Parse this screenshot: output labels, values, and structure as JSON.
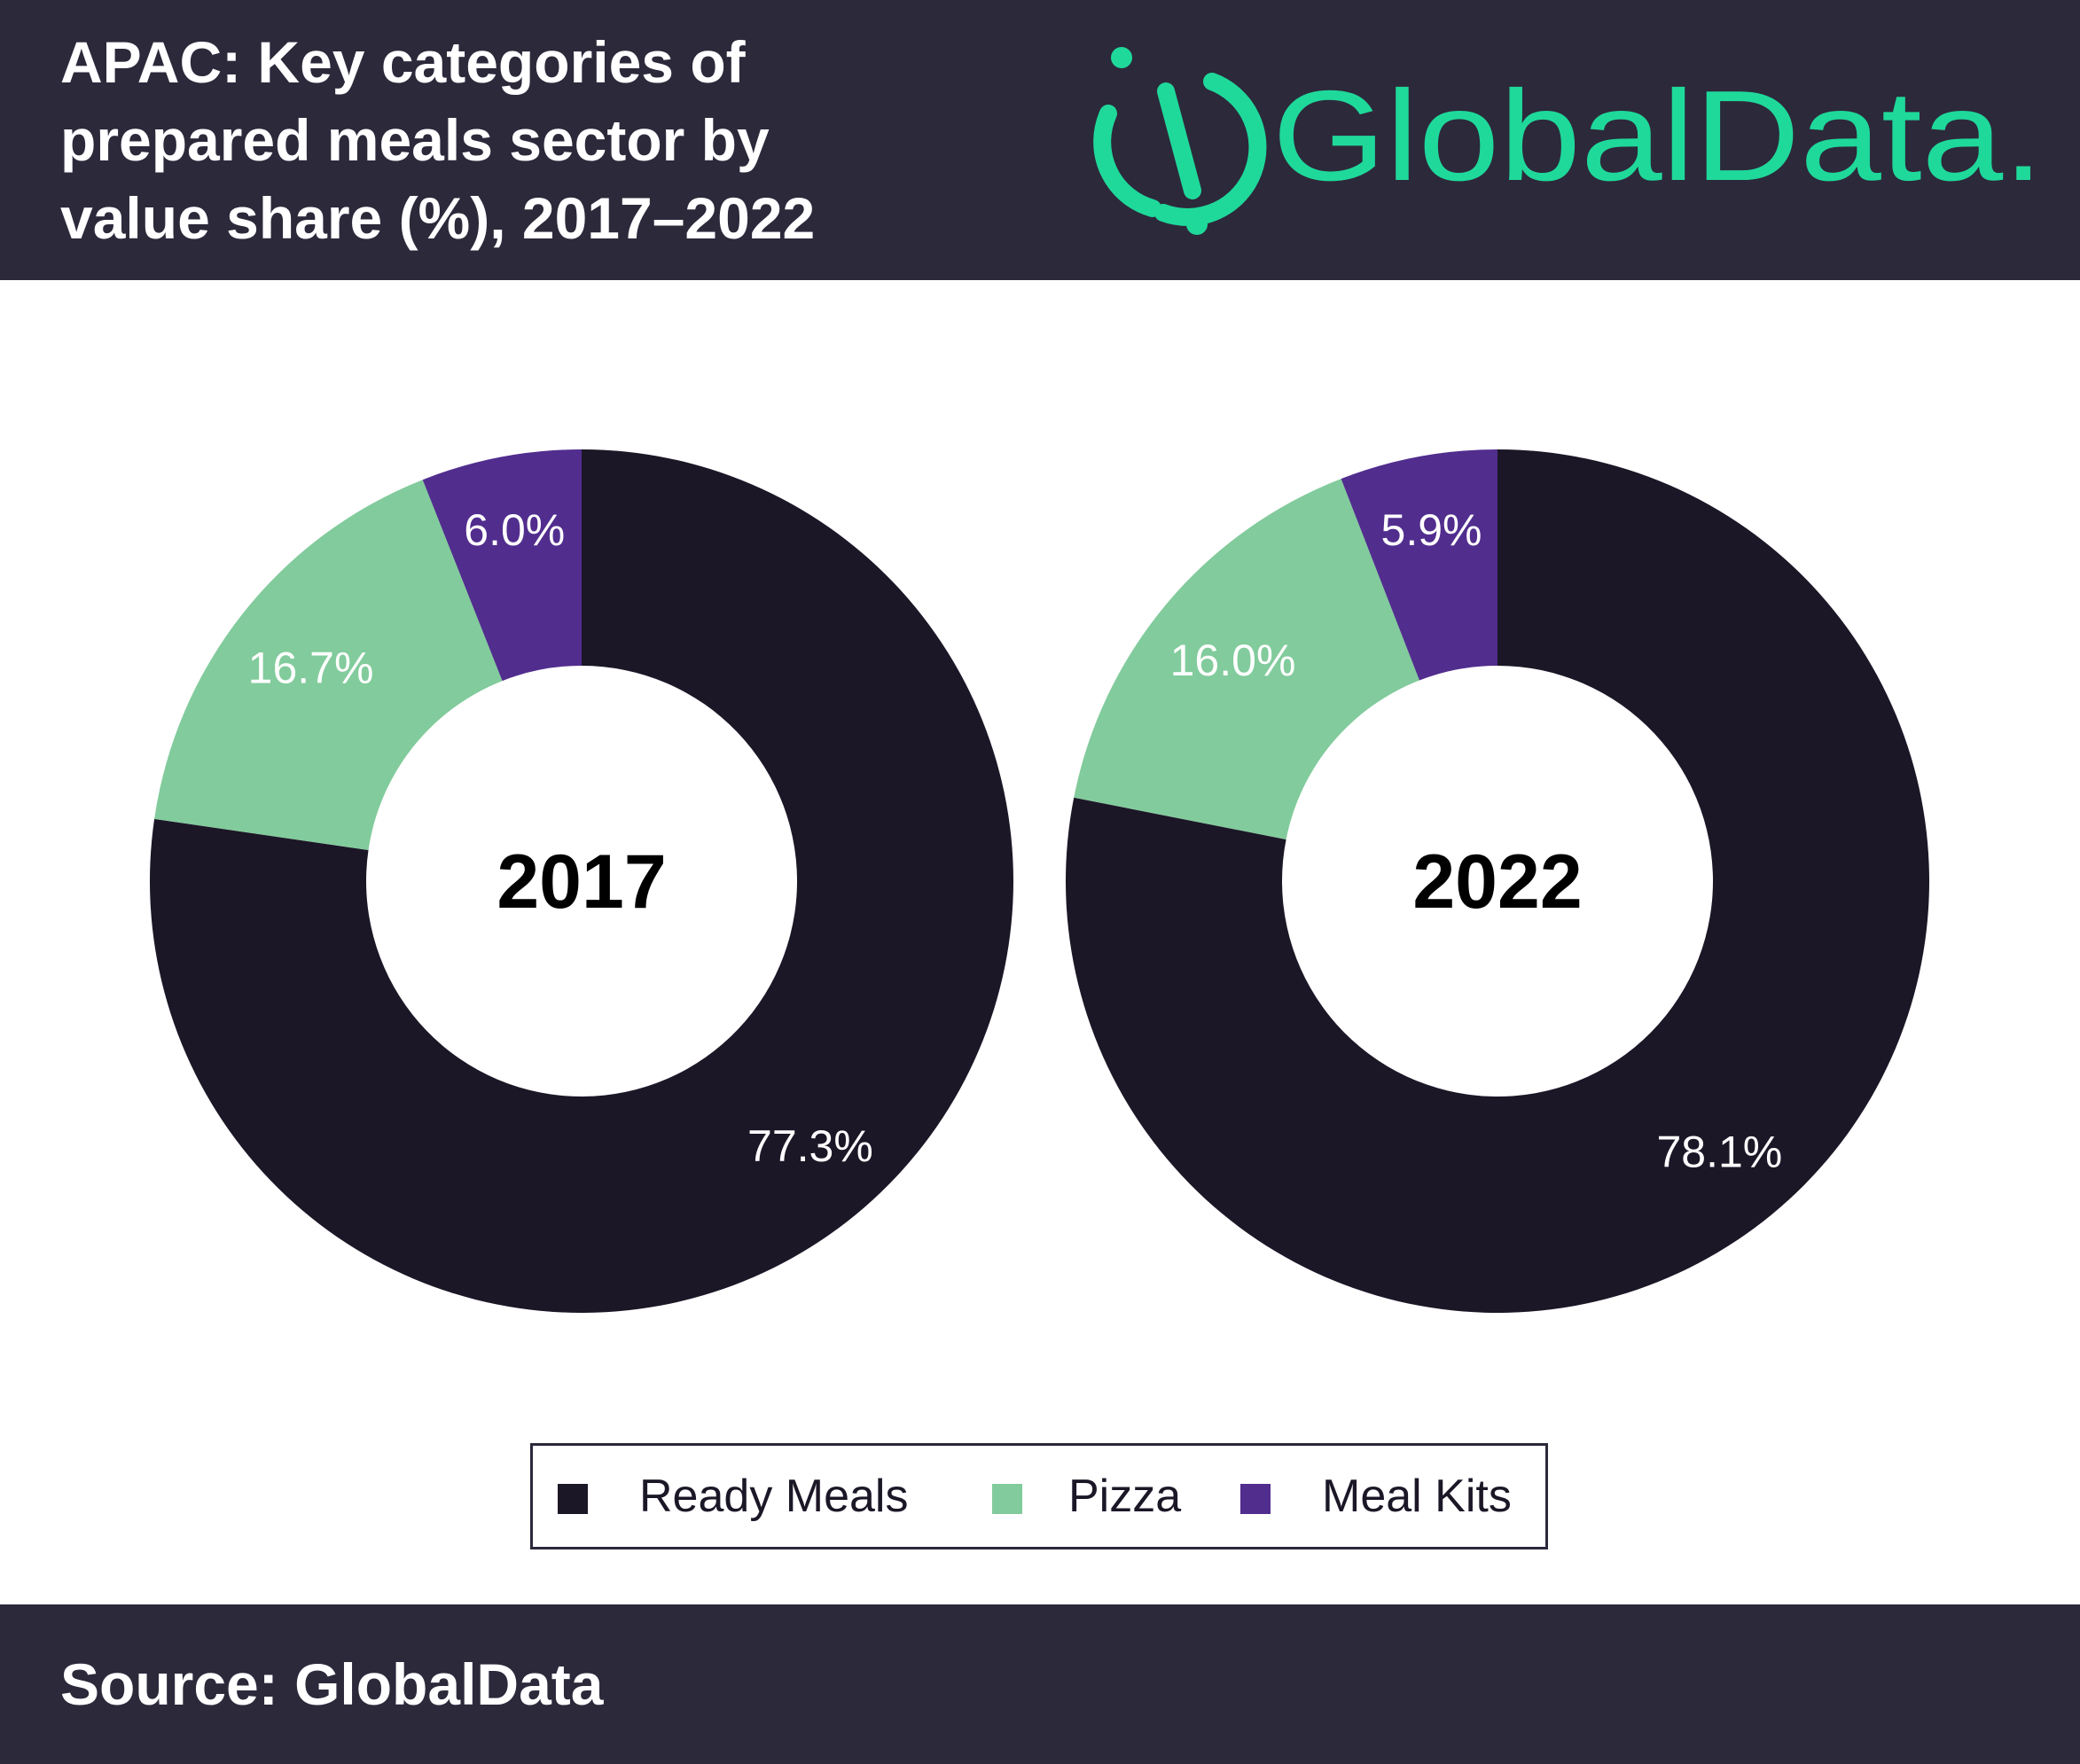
{
  "header": {
    "title_line1": "APAC: Key categories of",
    "title_line2": "prepared meals sector by",
    "title_line3": "value share (%), 2017–2022",
    "logo_text": "GlobalData."
  },
  "colors": {
    "background_bar": "#2c293b",
    "ready_meals": "#1c1727",
    "pizza": "#82cb9c",
    "meal_kits": "#512d8e",
    "logo": "#1fd99a"
  },
  "chart_data": [
    {
      "type": "pie",
      "title": "2017",
      "categories": [
        "Ready Meals",
        "Pizza",
        "Meal Kits"
      ],
      "values": [
        77.3,
        16.7,
        6.0
      ],
      "labels": [
        "77.3%",
        "16.7%",
        "6.0%"
      ]
    },
    {
      "type": "pie",
      "title": "2022",
      "categories": [
        "Ready Meals",
        "Pizza",
        "Meal Kits"
      ],
      "values": [
        78.1,
        16.0,
        5.9
      ],
      "labels": [
        "78.1%",
        "16.0%",
        "5.9%"
      ]
    }
  ],
  "legend": {
    "placement": "bottom-center",
    "items": [
      "Ready Meals",
      "Pizza",
      "Meal Kits"
    ]
  },
  "footer": {
    "source": "Source: GlobalData"
  }
}
